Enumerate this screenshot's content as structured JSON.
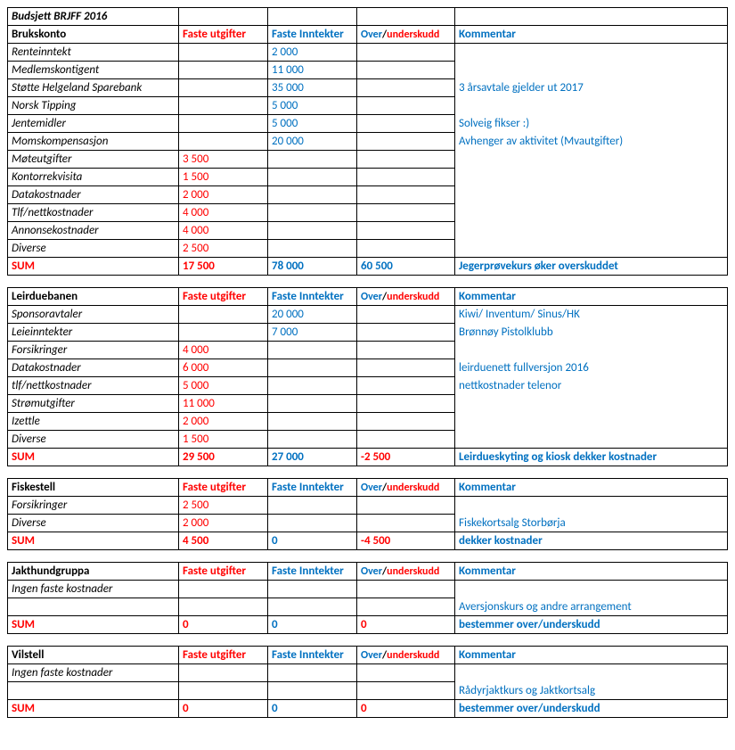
{
  "title": "Budsjett BRJFF 2016",
  "headers": {
    "utgifter": "Faste utgifter",
    "inntekter": "Faste Inntekter",
    "over": "Over",
    "slash": "/",
    "under": "underskudd",
    "kommentar": "Kommentar"
  },
  "sumLabel": "SUM",
  "sections": [
    {
      "name": "Brukskonto",
      "rows": [
        {
          "label": "Renteinntekt",
          "inn": "2 000"
        },
        {
          "label": "Medlemskontigent",
          "inn": "11 000"
        },
        {
          "label": "Støtte Helgeland Sparebank",
          "inn": "35 000",
          "komm": "3 årsavtale gjelder  ut 2017"
        },
        {
          "label": "Norsk Tipping",
          "inn": "5 000"
        },
        {
          "label": "Jentemidler",
          "inn": "5 000",
          "komm": "Solveig fikser :)"
        },
        {
          "label": "Momskompensasjon",
          "inn": "20 000",
          "komm": "Avhenger av aktivitet (Mvautgifter)"
        },
        {
          "label": "Møteutgifter",
          "utg": "3 500"
        },
        {
          "label": "Kontorrekvisita",
          "utg": "1 500"
        },
        {
          "label": "Datakostnader",
          "utg": "2 000"
        },
        {
          "label": "Tlf/nettkostnader",
          "utg": "4 000"
        },
        {
          "label": "Annonsekostnader",
          "utg": "4 000"
        },
        {
          "label": "Diverse",
          "utg": "2 500"
        }
      ],
      "sum": {
        "utg": "17 500",
        "inn": "78 000",
        "ou": "60 500",
        "ouColor": "blue",
        "komm": "Jegerprøvekurs øker overskuddet"
      }
    },
    {
      "name": "Leirduebanen",
      "rows": [
        {
          "label": "Sponsoravtaler",
          "inn": "20 000",
          "komm": "Kiwi/ Inventum/ Sinus/HK"
        },
        {
          "label": "Leieinntekter",
          "inn": "7 000",
          "komm": "Brønnøy Pistolklubb"
        },
        {
          "label": "Forsikringer",
          "utg": "4 000"
        },
        {
          "label": "Datakostnader",
          "utg": "6 000",
          "komm": "leirduenett fullversjon 2016"
        },
        {
          "label": "tlf/nettkostnader",
          "utg": "5 000",
          "komm": "nettkostnader telenor"
        },
        {
          "label": "Strømutgifter",
          "utg": "11 000"
        },
        {
          "label": "Izettle",
          "utg": "2 000"
        },
        {
          "label": "Diverse",
          "utg": "1 500"
        }
      ],
      "sum": {
        "utg": "29 500",
        "inn": "27 000",
        "ou": "-2 500",
        "ouColor": "red",
        "komm": "Leirdueskyting og kiosk dekker kostnader"
      }
    },
    {
      "name": "Fiskestell",
      "rows": [
        {
          "label": "Forsikringer",
          "utg": "2 500"
        },
        {
          "label": "Diverse",
          "utg": "2 000",
          "komm": "Fiskekortsalg Storbørja"
        }
      ],
      "sum": {
        "utg": "4 500",
        "inn": "0",
        "ou": "-4 500",
        "ouColor": "red",
        "komm": "dekker kostnader"
      }
    },
    {
      "name": "Jakthundgruppa",
      "rows": [
        {
          "label": "Ingen faste kostnader",
          "italic": true
        },
        {
          "komm": "Aversjonskurs og andre arrangement"
        }
      ],
      "sum": {
        "utg": "0",
        "inn": "0",
        "ou": "0",
        "ouColor": "red",
        "komm": "bestemmer over/underskudd"
      }
    },
    {
      "name": "Vilstell",
      "rows": [
        {
          "label": "Ingen faste kostnader",
          "italic": true
        },
        {
          "komm": "Rådyrjaktkurs og Jaktkortsalg"
        }
      ],
      "sum": {
        "utg": "0",
        "inn": "0",
        "ou": "0",
        "ouColor": "red",
        "komm": "bestemmer over/underskudd"
      }
    }
  ]
}
